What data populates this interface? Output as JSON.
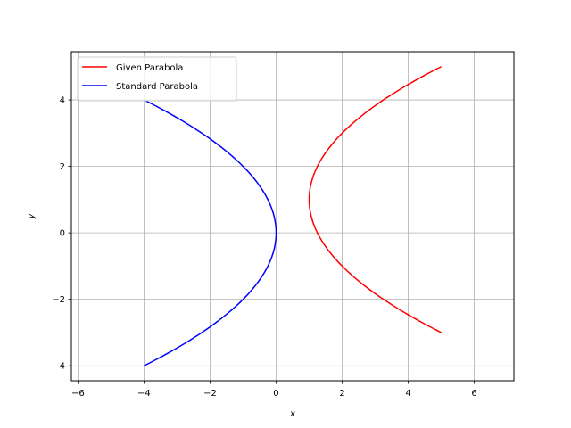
{
  "chart_data": {
    "type": "line",
    "title": "",
    "xlabel": "x",
    "ylabel": "y",
    "xlim": [
      -6.2,
      7.2
    ],
    "ylim": [
      -4.45,
      5.45
    ],
    "xticks": [
      -6,
      -4,
      -2,
      0,
      2,
      4,
      6
    ],
    "yticks": [
      -4,
      -2,
      0,
      2,
      4
    ],
    "xtick_labels": [
      "−6",
      "−4",
      "−2",
      "0",
      "2",
      "4",
      "6"
    ],
    "ytick_labels": [
      "−4",
      "−2",
      "0",
      "2",
      "4"
    ],
    "grid": true,
    "legend_position": "top-left",
    "series": [
      {
        "name": "Given Parabola",
        "color": "#ff0000",
        "x": [
          5.0,
          4.0,
          3.0,
          2.25,
          2.0,
          1.5625,
          1.25,
          1.0625,
          1.0,
          1.0625,
          1.25,
          1.5625,
          2.0,
          2.25,
          3.0,
          4.0,
          5.0
        ],
        "y": [
          5.0,
          4.464,
          3.828,
          3.236,
          3.0,
          2.5,
          2.0,
          1.5,
          1.0,
          0.5,
          0.0,
          -0.5,
          -1.0,
          -1.236,
          -1.828,
          -2.464,
          -3.0
        ]
      },
      {
        "name": "Standard Parabola",
        "color": "#0000ff",
        "x": [
          -4.0,
          -3.0625,
          -2.25,
          -1.5625,
          -1.0,
          -0.5625,
          -0.25,
          -0.0625,
          0.0,
          -0.0625,
          -0.25,
          -0.5625,
          -1.0,
          -1.5625,
          -2.25,
          -3.0625,
          -4.0
        ],
        "y": [
          4.0,
          3.5,
          3.0,
          2.5,
          2.0,
          1.5,
          1.0,
          0.5,
          0.0,
          -0.5,
          -1.0,
          -1.5,
          -2.0,
          -2.5,
          -3.0,
          -3.5,
          -4.0
        ]
      }
    ]
  }
}
